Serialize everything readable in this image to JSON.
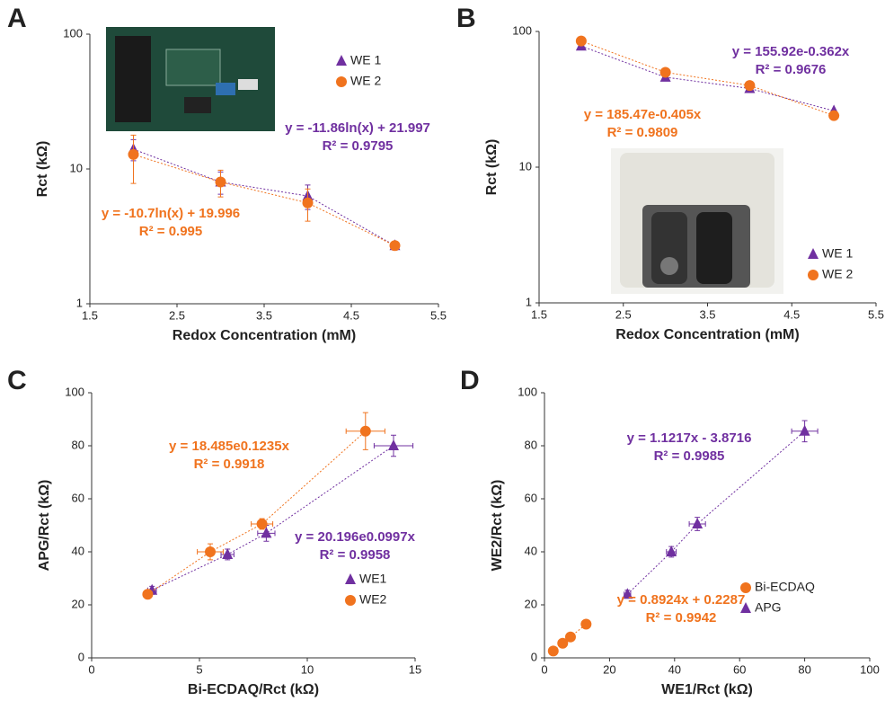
{
  "chart_data": [
    {
      "type": "scatter",
      "panel": "A",
      "xlabel": "Redox Concentration (mM)",
      "ylabel": "Rct (kΩ)",
      "ylog": true,
      "xlim": [
        1.5,
        5.5
      ],
      "xticks": [
        1.5,
        2.5,
        3.5,
        4.5,
        5.5
      ],
      "ylim": [
        1,
        100
      ],
      "yticks": [
        1,
        10,
        100
      ],
      "x": [
        2,
        3,
        4,
        5
      ],
      "series": [
        {
          "name": "WE 1",
          "color": "#7030a0",
          "marker": "triangle",
          "values": [
            14,
            8,
            6.3,
            2.7
          ],
          "errors": [
            2.5,
            1.5,
            1.3,
            0.2
          ]
        },
        {
          "name": "WE 2",
          "color": "#f0731e",
          "marker": "circle",
          "values": [
            12.8,
            8,
            5.6,
            2.7
          ],
          "errors": [
            5,
            1.8,
            1.5,
            0.2
          ]
        }
      ],
      "annotations": [
        {
          "text": "y = -11.86ln(x) + 21.997",
          "color": "#7030a0"
        },
        {
          "text": "R² = 0.9795",
          "color": "#7030a0"
        },
        {
          "text": "y = -10.7ln(x) + 19.996",
          "color": "#f0731e"
        },
        {
          "text": "R² = 0.995",
          "color": "#f0731e"
        }
      ]
    },
    {
      "type": "scatter",
      "panel": "B",
      "xlabel": "Redox Concentration (mM)",
      "ylabel": "Rct (kΩ)",
      "ylog": true,
      "xlim": [
        1.5,
        5.5
      ],
      "xticks": [
        1.5,
        2.5,
        3.5,
        4.5,
        5.5
      ],
      "ylim": [
        1,
        100
      ],
      "yticks": [
        1,
        10,
        100
      ],
      "x": [
        2,
        3,
        4,
        5
      ],
      "series": [
        {
          "name": "WE 1",
          "color": "#7030a0",
          "marker": "triangle",
          "values": [
            78,
            46,
            38,
            26
          ]
        },
        {
          "name": "WE 2",
          "color": "#f0731e",
          "marker": "circle",
          "values": [
            85,
            50,
            40,
            24
          ]
        }
      ],
      "annotations": [
        {
          "text": "y = 155.92e-0.362x",
          "color": "#7030a0"
        },
        {
          "text": "R² = 0.9676",
          "color": "#7030a0"
        },
        {
          "text": "y = 185.47e-0.405x",
          "color": "#f0731e"
        },
        {
          "text": "R² = 0.9809",
          "color": "#f0731e"
        }
      ]
    },
    {
      "type": "scatter",
      "panel": "C",
      "xlabel": "Bi-ECDAQ/Rct (kΩ)",
      "ylabel": "APG/Rct (kΩ)",
      "xlim": [
        0,
        15
      ],
      "xticks": [
        0,
        5,
        10,
        15
      ],
      "ylim": [
        0,
        100
      ],
      "yticks": [
        0,
        20,
        40,
        60,
        80,
        100
      ],
      "series": [
        {
          "name": "WE1",
          "color": "#7030a0",
          "marker": "triangle",
          "x": [
            2.8,
            6.3,
            8.1,
            14
          ],
          "x_errors": [
            0.2,
            0.3,
            0.4,
            0.9
          ],
          "values": [
            25.5,
            39,
            47,
            80
          ],
          "errors": [
            1.5,
            2,
            3,
            4
          ]
        },
        {
          "name": "WE2",
          "color": "#f0731e",
          "marker": "circle",
          "x": [
            2.6,
            5.5,
            7.9,
            12.7
          ],
          "x_errors": [
            0.2,
            0.6,
            0.5,
            0.9
          ],
          "values": [
            24,
            40,
            50.5,
            85.5
          ],
          "errors": [
            1.5,
            3,
            2,
            7
          ]
        }
      ],
      "annotations": [
        {
          "text": "y = 18.485e0.1235x",
          "color": "#f0731e"
        },
        {
          "text": "R² = 0.9918",
          "color": "#f0731e"
        },
        {
          "text": "y = 20.196e0.0997x",
          "color": "#7030a0"
        },
        {
          "text": "R² = 0.9958",
          "color": "#7030a0"
        }
      ]
    },
    {
      "type": "scatter",
      "panel": "D",
      "xlabel": "WE1/Rct (kΩ)",
      "ylabel": "WE2/Rct (kΩ)",
      "xlim": [
        0,
        100
      ],
      "xticks": [
        0,
        20,
        40,
        60,
        80,
        100
      ],
      "ylim": [
        0,
        100
      ],
      "yticks": [
        0,
        20,
        40,
        60,
        80,
        100
      ],
      "series": [
        {
          "name": "Bi-ECDAQ",
          "color": "#f0731e",
          "marker": "circle",
          "x": [
            2.7,
            5.6,
            8,
            12.8
          ],
          "values": [
            2.6,
            5.5,
            7.9,
            12.7
          ]
        },
        {
          "name": "APG",
          "color": "#7030a0",
          "marker": "triangle",
          "x": [
            25.5,
            39,
            47,
            80
          ],
          "x_errors": [
            1,
            1.5,
            2.5,
            4
          ],
          "values": [
            24,
            40,
            50.5,
            85.5
          ],
          "errors": [
            1.5,
            2,
            2.5,
            4
          ]
        }
      ],
      "annotations": [
        {
          "text": "y = 1.1217x - 3.8716",
          "color": "#7030a0"
        },
        {
          "text": "R² = 0.9985",
          "color": "#7030a0"
        },
        {
          "text": "y = 0.8924x + 0.2287",
          "color": "#f0731e"
        },
        {
          "text": "R² = 0.9942",
          "color": "#f0731e"
        }
      ]
    }
  ]
}
